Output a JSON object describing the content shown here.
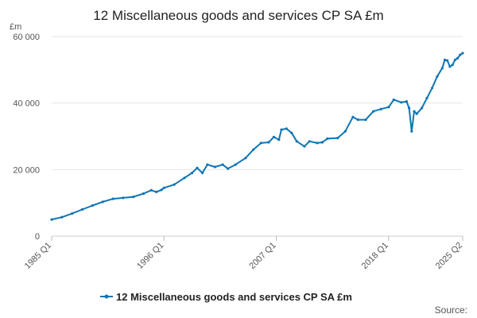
{
  "colors": {
    "series": "#0f75b5",
    "grid": "#e6e6e6",
    "text": "#222222"
  },
  "chart_data": {
    "type": "line",
    "title": "12 Miscellaneous goods and services CP SA £m",
    "ylabel": "£m",
    "xlabel": "",
    "ylim": [
      0,
      60000
    ],
    "yticks": [
      0,
      20000,
      40000,
      60000
    ],
    "ytick_labels": [
      "0",
      "20 000",
      "40 000",
      "60 000"
    ],
    "xticks": [
      1985.0,
      1996.0,
      2007.0,
      2018.0,
      2025.25
    ],
    "xtick_labels": [
      "1985 Q1",
      "1996 Q1",
      "2007 Q1",
      "2018 Q1",
      "2025 Q2"
    ],
    "xlim": [
      1985.0,
      2025.25
    ],
    "legend": "12 Miscellaneous goods and services CP SA £m",
    "legend_position": "bottom",
    "source": "Source:",
    "series": [
      {
        "name": "12 Miscellaneous goods and services CP SA £m",
        "points": [
          [
            1985.0,
            5000
          ],
          [
            1986.0,
            5700
          ],
          [
            1987.0,
            6800
          ],
          [
            1988.0,
            8000
          ],
          [
            1989.0,
            9200
          ],
          [
            1990.0,
            10300
          ],
          [
            1991.0,
            11200
          ],
          [
            1992.0,
            11500
          ],
          [
            1993.0,
            11800
          ],
          [
            1994.0,
            12800
          ],
          [
            1994.75,
            13800
          ],
          [
            1995.25,
            13300
          ],
          [
            1995.75,
            13900
          ],
          [
            1996.0,
            14500
          ],
          [
            1997.0,
            15500
          ],
          [
            1998.0,
            17500
          ],
          [
            1998.75,
            19000
          ],
          [
            1999.25,
            20500
          ],
          [
            1999.75,
            19000
          ],
          [
            2000.25,
            21500
          ],
          [
            2001.0,
            20800
          ],
          [
            2001.75,
            21500
          ],
          [
            2002.25,
            20300
          ],
          [
            2003.0,
            21500
          ],
          [
            2004.0,
            23500
          ],
          [
            2004.75,
            26000
          ],
          [
            2005.5,
            28000
          ],
          [
            2006.25,
            28200
          ],
          [
            2006.75,
            29800
          ],
          [
            2007.25,
            29000
          ],
          [
            2007.5,
            32000
          ],
          [
            2008.0,
            32300
          ],
          [
            2008.5,
            31000
          ],
          [
            2009.0,
            28500
          ],
          [
            2009.75,
            27000
          ],
          [
            2010.25,
            28500
          ],
          [
            2011.0,
            28000
          ],
          [
            2011.5,
            28200
          ],
          [
            2012.0,
            29300
          ],
          [
            2013.0,
            29500
          ],
          [
            2013.75,
            31500
          ],
          [
            2014.5,
            35800
          ],
          [
            2015.0,
            35000
          ],
          [
            2015.75,
            35000
          ],
          [
            2016.5,
            37500
          ],
          [
            2017.25,
            38200
          ],
          [
            2018.0,
            38800
          ],
          [
            2018.5,
            41000
          ],
          [
            2019.25,
            40200
          ],
          [
            2019.75,
            40500
          ],
          [
            2020.0,
            38500
          ],
          [
            2020.25,
            31500
          ],
          [
            2020.5,
            37500
          ],
          [
            2020.75,
            36800
          ],
          [
            2021.25,
            38500
          ],
          [
            2021.75,
            41500
          ],
          [
            2022.25,
            44500
          ],
          [
            2022.75,
            48000
          ],
          [
            2023.25,
            50500
          ],
          [
            2023.5,
            53000
          ],
          [
            2023.75,
            52800
          ],
          [
            2024.0,
            51000
          ],
          [
            2024.25,
            51500
          ],
          [
            2024.5,
            53000
          ],
          [
            2024.75,
            53500
          ],
          [
            2025.0,
            54500
          ],
          [
            2025.25,
            55000
          ]
        ]
      }
    ]
  }
}
